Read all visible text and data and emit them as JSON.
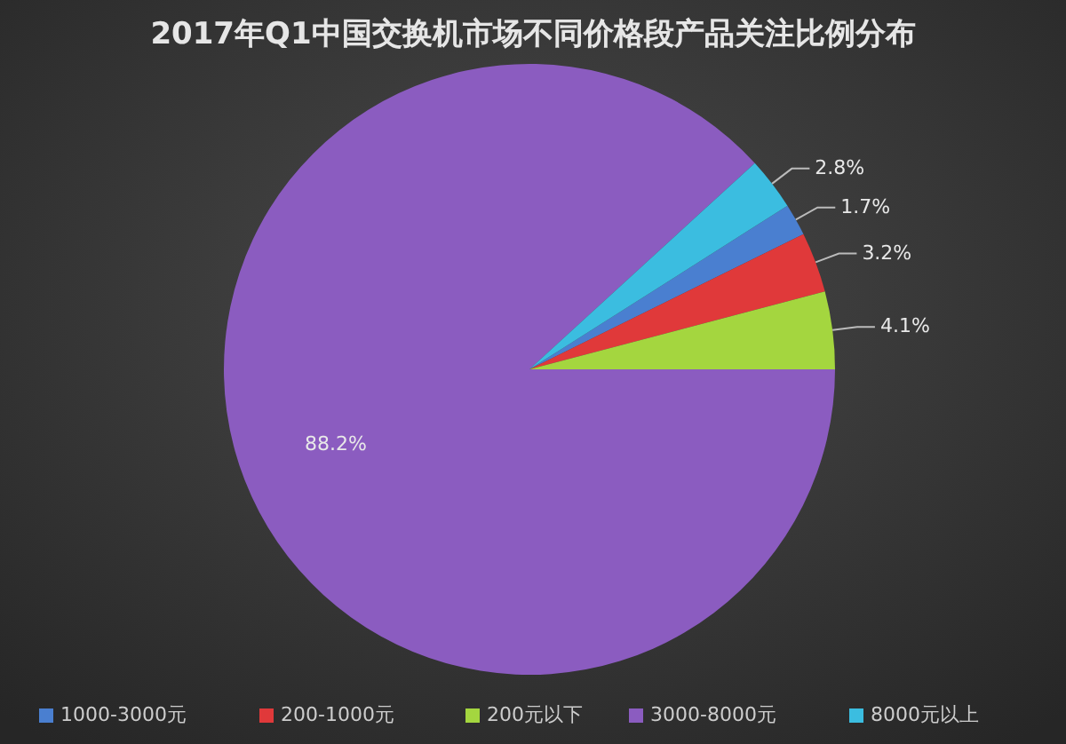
{
  "chart_data": {
    "type": "pie",
    "title": "2017年Q1中国交换机市场不同价格段产品关注比例分布",
    "categories": [
      "1000-3000元",
      "200-1000元",
      "200元以下",
      "3000-8000元",
      "8000元以上"
    ],
    "values": [
      1.7,
      3.2,
      4.1,
      88.2,
      2.8
    ],
    "colors": [
      "#4a7fd0",
      "#e0393a",
      "#a4d63f",
      "#8b5cc0",
      "#3bbde0"
    ],
    "value_labels": [
      "1.7%",
      "3.2%",
      "4.1%",
      "88.2%",
      "2.8%"
    ],
    "legend": "bottom"
  }
}
